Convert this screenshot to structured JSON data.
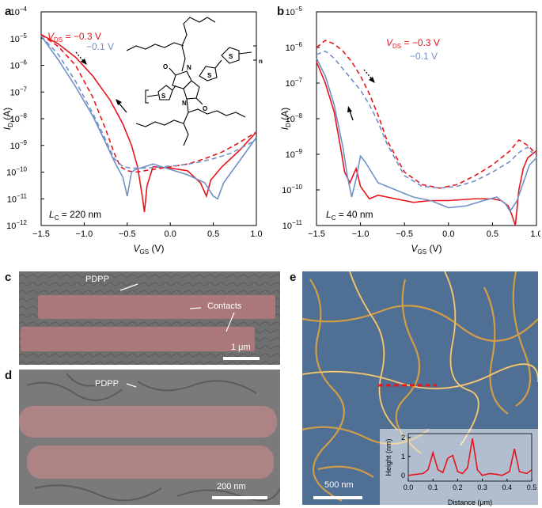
{
  "panels": {
    "a": {
      "letter": "a",
      "annotation": "L",
      "annotation_sub": "C",
      "annotation_value": " = 220 nm"
    },
    "b": {
      "letter": "b",
      "annotation": "L",
      "annotation_sub": "C",
      "annotation_value": " = 40 nm"
    },
    "c": {
      "letter": "c",
      "label_pdpp": "PDPP",
      "label_contacts": "Contacts",
      "scalebar": "1 μm"
    },
    "d": {
      "letter": "d",
      "label_pdpp": "PDPP",
      "scalebar": "200 nm"
    },
    "e": {
      "letter": "e",
      "scalebar": "500 nm"
    }
  },
  "molecule": {
    "label_n": "n",
    "atom_o": "O",
    "atom_n": "N",
    "atom_s": "S"
  },
  "chart_data": [
    {
      "type": "line",
      "panel": "a",
      "xlabel": "V",
      "xlabel_sub": "GS",
      "xlabel_unit": " (V)",
      "ylabel": "I",
      "ylabel_sub": "D",
      "ylabel_unit": " (A)",
      "xlim": [
        -1.5,
        1.0
      ],
      "ylim_log10": [
        -12,
        -4
      ],
      "yscale": "log",
      "xticks": [
        "−1.5",
        "−1.0",
        "−0.5",
        "0.0",
        "0.5",
        "1.0"
      ],
      "yticks": [
        "10",
        "10",
        "10",
        "10",
        "10",
        "10",
        "10",
        "10",
        "10"
      ],
      "ytick_exps": [
        "−12",
        "−11",
        "−10",
        "−9",
        "−8",
        "−7",
        "−6",
        "−5",
        "−4"
      ],
      "legend": [
        {
          "label": "V",
          "sub": "DS",
          "value": " = −0.3 V",
          "color": "#e8141c"
        },
        {
          "label": "",
          "sub": "",
          "value": "−0.1 V",
          "color": "#7090c8"
        }
      ],
      "series": [
        {
          "color": "#e8141c",
          "dash": false,
          "x": [
            -1.5,
            -1.3,
            -1.1,
            -0.9,
            -0.7,
            -0.55,
            -0.45,
            -0.38,
            -0.33,
            -0.3,
            -0.27,
            -0.2,
            0.0,
            0.2,
            0.35,
            0.42,
            0.47,
            0.6,
            0.8,
            1.0
          ],
          "y": [
            -4.85,
            -5.2,
            -5.7,
            -6.4,
            -7.3,
            -8.2,
            -9.0,
            -9.8,
            -10.8,
            -11.5,
            -10.5,
            -9.8,
            -9.85,
            -9.95,
            -10.4,
            -10.9,
            -10.3,
            -9.8,
            -9.2,
            -8.5
          ]
        },
        {
          "color": "#e8141c",
          "dash": true,
          "x": [
            -1.5,
            -1.3,
            -1.1,
            -0.9,
            -0.75,
            -0.65,
            -0.58,
            -0.5,
            -0.4,
            -0.3,
            -0.2,
            0.0,
            0.2,
            0.4,
            0.6,
            0.8,
            1.0
          ],
          "y": [
            -4.85,
            -5.3,
            -6.0,
            -7.2,
            -8.4,
            -9.3,
            -9.8,
            -9.95,
            -10.0,
            -9.95,
            -9.9,
            -9.8,
            -9.7,
            -9.5,
            -9.25,
            -8.9,
            -8.5
          ]
        },
        {
          "color": "#7090c8",
          "dash": false,
          "x": [
            -1.5,
            -1.3,
            -1.1,
            -0.9,
            -0.75,
            -0.65,
            -0.55,
            -0.5,
            -0.45,
            -0.4,
            -0.3,
            -0.2,
            0.0,
            0.2,
            0.4,
            0.5,
            0.55,
            0.62,
            0.8,
            1.0
          ],
          "y": [
            -4.9,
            -5.8,
            -6.8,
            -7.9,
            -8.9,
            -9.6,
            -10.2,
            -10.9,
            -10.0,
            -9.9,
            -9.8,
            -9.7,
            -9.9,
            -10.1,
            -10.4,
            -10.9,
            -11.0,
            -10.4,
            -9.6,
            -8.7
          ]
        },
        {
          "color": "#7090c8",
          "dash": true,
          "x": [
            -1.5,
            -1.3,
            -1.1,
            -0.9,
            -0.75,
            -0.65,
            -0.55,
            -0.45,
            -0.3,
            -0.1,
            0.1,
            0.3,
            0.5,
            0.7,
            0.85,
            1.0
          ],
          "y": [
            -4.9,
            -5.6,
            -6.6,
            -7.8,
            -8.8,
            -9.5,
            -9.8,
            -9.85,
            -9.85,
            -9.8,
            -9.75,
            -9.65,
            -9.5,
            -9.3,
            -9.05,
            -8.8
          ]
        }
      ]
    },
    {
      "type": "line",
      "panel": "b",
      "xlabel": "V",
      "xlabel_sub": "GS",
      "xlabel_unit": " (V)",
      "ylabel": "I",
      "ylabel_sub": "D",
      "ylabel_unit": " (A)",
      "xlim": [
        -1.5,
        1.0
      ],
      "ylim_log10": [
        -11,
        -5
      ],
      "yscale": "log",
      "xticks": [
        "−1.5",
        "−1.0",
        "−0.5",
        "0.0",
        "0.5",
        "1.0"
      ],
      "yticks": [
        "10",
        "10",
        "10",
        "10",
        "10",
        "10",
        "10"
      ],
      "ytick_exps": [
        "−11",
        "−10",
        "−9",
        "−8",
        "−7",
        "−6",
        "−5"
      ],
      "legend": [
        {
          "label": "V",
          "sub": "DS",
          "value": " = −0.3 V",
          "color": "#e8141c"
        },
        {
          "label": "",
          "sub": "",
          "value": "−0.1 V",
          "color": "#7090c8"
        }
      ],
      "series": [
        {
          "color": "#e8141c",
          "dash": false,
          "x": [
            -1.5,
            -1.4,
            -1.3,
            -1.22,
            -1.18,
            -1.12,
            -1.05,
            -1.0,
            -0.9,
            -0.8,
            -0.6,
            -0.4,
            -0.2,
            0.0,
            0.3,
            0.5,
            0.6,
            0.68,
            0.72,
            0.76,
            0.8,
            0.85,
            0.9,
            1.0
          ],
          "y": [
            -6.4,
            -7.0,
            -7.8,
            -8.9,
            -9.5,
            -9.8,
            -9.4,
            -9.9,
            -10.25,
            -10.15,
            -10.25,
            -10.35,
            -10.3,
            -10.3,
            -10.25,
            -10.25,
            -10.3,
            -10.45,
            -10.7,
            -11.0,
            -10.0,
            -9.4,
            -9.1,
            -8.9
          ]
        },
        {
          "color": "#e8141c",
          "dash": true,
          "x": [
            -1.5,
            -1.4,
            -1.3,
            -1.2,
            -1.1,
            -1.0,
            -0.9,
            -0.8,
            -0.7,
            -0.5,
            -0.3,
            -0.1,
            0.1,
            0.3,
            0.5,
            0.7,
            0.8,
            0.9,
            1.0
          ],
          "y": [
            -6.0,
            -5.8,
            -5.9,
            -6.1,
            -6.4,
            -6.8,
            -7.3,
            -7.9,
            -8.6,
            -9.5,
            -9.85,
            -9.95,
            -9.85,
            -9.6,
            -9.3,
            -8.9,
            -8.6,
            -8.75,
            -9.0
          ]
        },
        {
          "color": "#7090c8",
          "dash": false,
          "x": [
            -1.5,
            -1.4,
            -1.3,
            -1.2,
            -1.15,
            -1.1,
            -1.05,
            -1.0,
            -0.95,
            -0.9,
            -0.8,
            -0.6,
            -0.4,
            -0.2,
            0.0,
            0.2,
            0.4,
            0.55,
            0.65,
            0.7,
            0.78,
            0.85,
            0.92,
            1.0
          ],
          "y": [
            -6.3,
            -6.8,
            -7.6,
            -8.8,
            -9.6,
            -10.2,
            -9.7,
            -9.05,
            -9.2,
            -9.4,
            -9.8,
            -10.0,
            -10.2,
            -10.3,
            -10.5,
            -10.45,
            -10.3,
            -10.2,
            -10.4,
            -10.6,
            -10.3,
            -9.8,
            -9.3,
            -9.1
          ]
        },
        {
          "color": "#7090c8",
          "dash": true,
          "x": [
            -1.5,
            -1.4,
            -1.3,
            -1.2,
            -1.1,
            -1.0,
            -0.9,
            -0.8,
            -0.7,
            -0.5,
            -0.3,
            -0.1,
            0.1,
            0.3,
            0.5,
            0.7,
            0.8,
            0.9,
            1.0
          ],
          "y": [
            -6.2,
            -6.1,
            -6.3,
            -6.6,
            -6.9,
            -7.2,
            -7.6,
            -8.1,
            -8.7,
            -9.6,
            -9.9,
            -9.95,
            -9.9,
            -9.75,
            -9.5,
            -9.2,
            -8.95,
            -8.8,
            -9.1
          ]
        }
      ]
    },
    {
      "type": "line",
      "panel": "e-inset",
      "xlabel": "Distance (μm)",
      "ylabel": "Height (nm)",
      "xlim": [
        0,
        0.5
      ],
      "ylim": [
        -0.3,
        2.2
      ],
      "xticks": [
        "0.0",
        "0.1",
        "0.2",
        "0.3",
        "0.4",
        "0.5"
      ],
      "yticks": [
        "0",
        "1",
        "2"
      ],
      "series": [
        {
          "color": "#e8141c",
          "dash": false,
          "x": [
            0.0,
            0.03,
            0.06,
            0.08,
            0.1,
            0.12,
            0.14,
            0.16,
            0.18,
            0.2,
            0.22,
            0.24,
            0.26,
            0.28,
            0.3,
            0.33,
            0.36,
            0.38,
            0.41,
            0.43,
            0.45,
            0.48,
            0.5
          ],
          "y": [
            0.0,
            0.05,
            0.1,
            0.3,
            1.2,
            0.3,
            0.15,
            0.9,
            1.05,
            0.2,
            0.1,
            0.4,
            1.95,
            0.3,
            0.0,
            0.1,
            0.05,
            0.0,
            0.2,
            1.4,
            0.2,
            0.1,
            0.3
          ]
        }
      ]
    }
  ]
}
